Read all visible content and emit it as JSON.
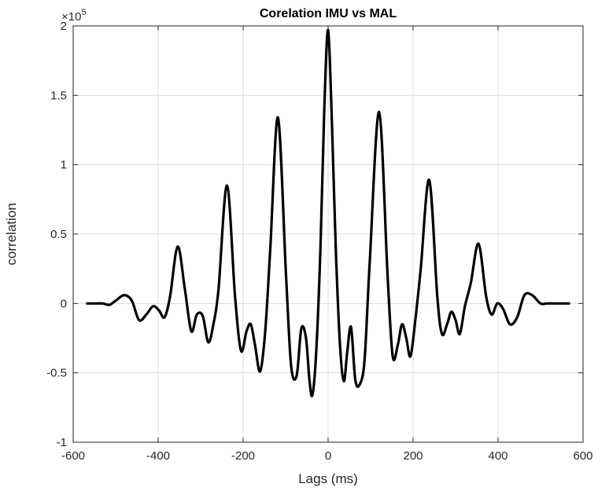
{
  "chart_data": {
    "type": "line",
    "title": "Corelation IMU vs MAL",
    "xlabel": "Lags (ms)",
    "ylabel": "correlation",
    "y_multiplier": {
      "base": "×10",
      "exponent": "5"
    },
    "xlim": [
      -600,
      600
    ],
    "ylim": [
      -1,
      2
    ],
    "x_ticks": [
      -600,
      -400,
      -200,
      0,
      200,
      400,
      600
    ],
    "y_ticks": [
      -1,
      -0.5,
      0,
      0.5,
      1,
      1.5,
      2
    ],
    "x_tick_labels": [
      "-600",
      "-400",
      "-200",
      "0",
      "200",
      "400",
      "600"
    ],
    "y_tick_labels": [
      "-1",
      "-0.5",
      "0",
      "0.5",
      "1",
      "1.5",
      "2"
    ],
    "grid": true,
    "series": [
      {
        "color": "#000000",
        "x": [
          -567,
          -545,
          -530,
          -515,
          -500,
          -480,
          -462,
          -445,
          -428,
          -412,
          -398,
          -385,
          -372,
          -354,
          -337,
          -322,
          -309,
          -295,
          -282,
          -270,
          -258,
          -238,
          -219,
          -205,
          -192,
          -182,
          -172,
          -160,
          -148,
          -136,
          -118,
          -99,
          -87,
          -74,
          -63,
          -52,
          -44,
          -37,
          -28,
          -18,
          -9,
          0,
          9,
          18,
          28,
          37,
          45,
          54,
          64,
          75,
          86,
          98,
          120,
          140,
          152,
          164,
          174,
          184,
          194,
          206,
          218,
          238,
          257,
          268,
          280,
          290,
          300,
          310,
          322,
          336,
          354,
          372,
          385,
          398,
          412,
          428,
          445,
          462,
          480,
          500,
          515,
          530,
          545,
          567
        ],
        "y": [
          0,
          0,
          0,
          -0.01,
          0.02,
          0.06,
          0.02,
          -0.12,
          -0.08,
          -0.02,
          -0.05,
          -0.1,
          0.05,
          0.41,
          0.1,
          -0.2,
          -0.08,
          -0.09,
          -0.28,
          -0.15,
          0.1,
          0.85,
          0.05,
          -0.34,
          -0.2,
          -0.15,
          -0.3,
          -0.49,
          -0.2,
          0.4,
          1.34,
          0.2,
          -0.45,
          -0.52,
          -0.18,
          -0.25,
          -0.55,
          -0.66,
          -0.35,
          0.4,
          1.4,
          1.97,
          1.3,
          0.4,
          -0.3,
          -0.56,
          -0.35,
          -0.17,
          -0.55,
          -0.58,
          -0.4,
          0.3,
          1.38,
          0.2,
          -0.38,
          -0.3,
          -0.15,
          -0.25,
          -0.38,
          -0.1,
          0.25,
          0.89,
          0.05,
          -0.22,
          -0.15,
          -0.06,
          -0.12,
          -0.22,
          -0.02,
          0.15,
          0.43,
          0.05,
          -0.08,
          0,
          -0.04,
          -0.15,
          -0.1,
          0.06,
          0.06,
          0,
          0,
          0,
          0,
          0
        ]
      }
    ]
  }
}
